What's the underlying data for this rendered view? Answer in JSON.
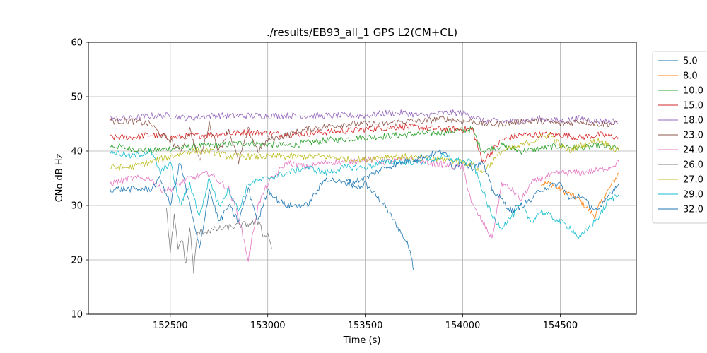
{
  "chart_data": {
    "type": "line",
    "title": "./results/EB93_all_1 GPS L2(CM+CL)",
    "xlabel": "Time (s)",
    "ylabel": "CNo dB Hz",
    "xlim": [
      152080,
      154890
    ],
    "ylim": [
      10,
      60
    ],
    "x_ticks": [
      152500,
      153000,
      153500,
      154000,
      154500
    ],
    "y_ticks": [
      10,
      20,
      30,
      40,
      50,
      60
    ],
    "grid": true,
    "legend_position": "right-outside",
    "series": [
      {
        "name": "5.0",
        "color": "#1f77b4",
        "points": [
          [
            153400,
            35
          ],
          [
            153450,
            33
          ],
          [
            153500,
            34
          ],
          [
            153550,
            32
          ],
          [
            153600,
            30
          ],
          [
            153650,
            27
          ],
          [
            153700,
            24
          ],
          [
            153730,
            22
          ],
          [
            153750,
            18
          ]
        ]
      },
      {
        "name": "8.0",
        "color": "#ff7f0e",
        "points": [
          [
            154400,
            34
          ],
          [
            154450,
            34
          ],
          [
            154500,
            33
          ],
          [
            154550,
            32
          ],
          [
            154600,
            31
          ],
          [
            154650,
            29
          ],
          [
            154680,
            28
          ],
          [
            154700,
            30
          ],
          [
            154750,
            33
          ],
          [
            154800,
            36
          ]
        ]
      },
      {
        "name": "10.0",
        "color": "#2ca02c",
        "points": [
          [
            152190,
            41
          ],
          [
            152300,
            40.5
          ],
          [
            152400,
            40
          ],
          [
            152500,
            40.5
          ],
          [
            152700,
            41
          ],
          [
            152900,
            41.5
          ],
          [
            153100,
            41
          ],
          [
            153300,
            42
          ],
          [
            153500,
            42.5
          ],
          [
            153700,
            43
          ],
          [
            153900,
            43.5
          ],
          [
            154050,
            44
          ],
          [
            154100,
            40
          ],
          [
            154200,
            41
          ],
          [
            154300,
            40
          ],
          [
            154400,
            40.5
          ],
          [
            154500,
            41
          ],
          [
            154600,
            40.5
          ],
          [
            154700,
            41
          ],
          [
            154800,
            40.5
          ]
        ]
      },
      {
        "name": "15.0",
        "color": "#d62728",
        "points": [
          [
            152190,
            42.5
          ],
          [
            152300,
            42.5
          ],
          [
            152400,
            43
          ],
          [
            152500,
            42.5
          ],
          [
            152700,
            43
          ],
          [
            152900,
            43.5
          ],
          [
            153100,
            43
          ],
          [
            153300,
            43.5
          ],
          [
            153500,
            44
          ],
          [
            153700,
            44.5
          ],
          [
            153900,
            44
          ],
          [
            154050,
            44
          ],
          [
            154100,
            38
          ],
          [
            154150,
            40
          ],
          [
            154200,
            42
          ],
          [
            154300,
            43
          ],
          [
            154400,
            43
          ],
          [
            154500,
            43
          ],
          [
            154600,
            42.5
          ],
          [
            154700,
            43
          ],
          [
            154800,
            42.5
          ]
        ]
      },
      {
        "name": "18.0",
        "color": "#9467bd",
        "points": [
          [
            152190,
            46
          ],
          [
            152300,
            46
          ],
          [
            152400,
            46.5
          ],
          [
            152500,
            46.5
          ],
          [
            152600,
            46
          ],
          [
            152700,
            46.5
          ],
          [
            152800,
            46.5
          ],
          [
            152900,
            46.5
          ],
          [
            153000,
            46.5
          ],
          [
            153100,
            46.5
          ],
          [
            153200,
            46.5
          ],
          [
            153300,
            46.5
          ],
          [
            153400,
            46.5
          ],
          [
            153500,
            46.5
          ],
          [
            153600,
            47
          ],
          [
            153700,
            47
          ],
          [
            153800,
            46.5
          ],
          [
            153900,
            47
          ],
          [
            154000,
            47
          ],
          [
            154050,
            46.5
          ],
          [
            154100,
            45.5
          ],
          [
            154200,
            45.5
          ],
          [
            154300,
            45.5
          ],
          [
            154400,
            46
          ],
          [
            154500,
            45.5
          ],
          [
            154600,
            46
          ],
          [
            154700,
            45.5
          ],
          [
            154800,
            45.5
          ]
        ]
      },
      {
        "name": "23.0",
        "color": "#8c564b",
        "points": [
          [
            152190,
            45.5
          ],
          [
            152300,
            45.5
          ],
          [
            152400,
            45
          ],
          [
            152450,
            43
          ],
          [
            152500,
            42
          ],
          [
            152550,
            40
          ],
          [
            152600,
            44
          ],
          [
            152650,
            38
          ],
          [
            152700,
            45
          ],
          [
            152750,
            40
          ],
          [
            152800,
            44
          ],
          [
            152850,
            38
          ],
          [
            152900,
            44
          ],
          [
            152950,
            40
          ],
          [
            153000,
            42
          ],
          [
            153100,
            43
          ],
          [
            153200,
            44
          ],
          [
            153300,
            44.5
          ],
          [
            153400,
            45
          ],
          [
            153500,
            45
          ],
          [
            153600,
            45
          ],
          [
            153700,
            45.5
          ],
          [
            153800,
            45.5
          ],
          [
            153900,
            46
          ],
          [
            154000,
            45.5
          ],
          [
            154050,
            45.5
          ],
          [
            154100,
            45
          ],
          [
            154200,
            45
          ],
          [
            154300,
            45.5
          ],
          [
            154400,
            45.5
          ],
          [
            154500,
            45
          ],
          [
            154600,
            45.5
          ],
          [
            154700,
            45
          ],
          [
            154800,
            45
          ]
        ]
      },
      {
        "name": "24.0",
        "color": "#e377c2",
        "points": [
          [
            152190,
            34
          ],
          [
            152300,
            35
          ],
          [
            152400,
            35
          ],
          [
            152450,
            33
          ],
          [
            152500,
            33
          ],
          [
            152600,
            35
          ],
          [
            152700,
            36
          ],
          [
            152800,
            33
          ],
          [
            152850,
            28
          ],
          [
            152900,
            20
          ],
          [
            152950,
            30
          ],
          [
            153000,
            34
          ],
          [
            153100,
            38
          ],
          [
            153200,
            37
          ],
          [
            153300,
            38
          ],
          [
            153400,
            38
          ],
          [
            153500,
            38.5
          ],
          [
            153600,
            38
          ],
          [
            153700,
            38.5
          ],
          [
            153800,
            38
          ],
          [
            153900,
            37.5
          ],
          [
            154000,
            37
          ],
          [
            154050,
            30
          ],
          [
            154100,
            27
          ],
          [
            154150,
            24
          ],
          [
            154200,
            34
          ],
          [
            154250,
            33
          ],
          [
            154300,
            31
          ],
          [
            154350,
            34
          ],
          [
            154400,
            35
          ],
          [
            154500,
            36
          ],
          [
            154600,
            36
          ],
          [
            154700,
            36.5
          ],
          [
            154750,
            37
          ],
          [
            154800,
            38
          ]
        ]
      },
      {
        "name": "26.0",
        "color": "#7f7f7f",
        "points": [
          [
            152480,
            30
          ],
          [
            152500,
            21
          ],
          [
            152520,
            28
          ],
          [
            152540,
            22
          ],
          [
            152560,
            24
          ],
          [
            152580,
            19
          ],
          [
            152600,
            26
          ],
          [
            152620,
            18
          ],
          [
            152640,
            25
          ],
          [
            152960,
            27
          ],
          [
            152980,
            24
          ],
          [
            153000,
            25
          ],
          [
            153020,
            22
          ]
        ]
      },
      {
        "name": "27.0",
        "color": "#bcbd22",
        "points": [
          [
            152190,
            37
          ],
          [
            152300,
            37
          ],
          [
            152400,
            38
          ],
          [
            152500,
            39
          ],
          [
            152600,
            40
          ],
          [
            152700,
            40
          ],
          [
            152800,
            39
          ],
          [
            152900,
            39
          ],
          [
            153000,
            39
          ],
          [
            153100,
            39
          ],
          [
            153200,
            39
          ],
          [
            153300,
            39
          ],
          [
            153400,
            38.5
          ],
          [
            153500,
            38.5
          ],
          [
            153600,
            39
          ],
          [
            153700,
            39
          ],
          [
            153800,
            38.5
          ],
          [
            153900,
            38.5
          ],
          [
            154000,
            38
          ],
          [
            154050,
            37.5
          ],
          [
            154100,
            36
          ],
          [
            154150,
            38
          ],
          [
            154200,
            40
          ],
          [
            154300,
            41
          ],
          [
            154400,
            42.5
          ],
          [
            154450,
            43
          ],
          [
            154500,
            41
          ],
          [
            154550,
            40
          ],
          [
            154600,
            41
          ],
          [
            154700,
            42
          ],
          [
            154800,
            40
          ]
        ]
      },
      {
        "name": "29.0",
        "color": "#17becf",
        "points": [
          [
            152190,
            40
          ],
          [
            152300,
            39
          ],
          [
            152400,
            40
          ],
          [
            152450,
            36
          ],
          [
            152500,
            38
          ],
          [
            152550,
            30
          ],
          [
            152600,
            34
          ],
          [
            152650,
            28
          ],
          [
            152700,
            35
          ],
          [
            152750,
            30
          ],
          [
            152800,
            33
          ],
          [
            152850,
            29
          ],
          [
            152900,
            34
          ],
          [
            153000,
            35
          ],
          [
            153100,
            36
          ],
          [
            153200,
            37
          ],
          [
            153300,
            36
          ],
          [
            153400,
            37
          ],
          [
            153500,
            37
          ],
          [
            153600,
            38
          ],
          [
            153700,
            38
          ],
          [
            153800,
            38
          ],
          [
            153900,
            39
          ],
          [
            154000,
            38
          ],
          [
            154050,
            38
          ],
          [
            154100,
            33
          ],
          [
            154150,
            28
          ],
          [
            154200,
            26
          ],
          [
            154250,
            28
          ],
          [
            154300,
            30
          ],
          [
            154350,
            27
          ],
          [
            154400,
            29
          ],
          [
            154500,
            27
          ],
          [
            154550,
            26
          ],
          [
            154600,
            24
          ],
          [
            154650,
            26
          ],
          [
            154700,
            28
          ],
          [
            154750,
            31
          ],
          [
            154800,
            32
          ]
        ]
      },
      {
        "name": "32.0",
        "color": "#1f77b4",
        "points": [
          [
            152190,
            33
          ],
          [
            152300,
            33
          ],
          [
            152400,
            33
          ],
          [
            152450,
            35
          ],
          [
            152500,
            30
          ],
          [
            152550,
            38
          ],
          [
            152600,
            30
          ],
          [
            152650,
            22
          ],
          [
            152700,
            33
          ],
          [
            152750,
            27
          ],
          [
            152800,
            30
          ],
          [
            152850,
            27
          ],
          [
            152900,
            33
          ],
          [
            152950,
            27
          ],
          [
            153000,
            33
          ],
          [
            153050,
            31
          ],
          [
            153100,
            30
          ],
          [
            153200,
            30
          ],
          [
            153300,
            35
          ],
          [
            153400,
            34
          ],
          [
            153500,
            35
          ],
          [
            153600,
            37
          ],
          [
            153700,
            38
          ],
          [
            153800,
            39
          ],
          [
            153900,
            40
          ],
          [
            153950,
            37
          ],
          [
            154000,
            38
          ],
          [
            154050,
            37
          ],
          [
            154100,
            38
          ],
          [
            154150,
            33
          ],
          [
            154200,
            31
          ],
          [
            154250,
            29
          ],
          [
            154300,
            30
          ],
          [
            154350,
            31
          ],
          [
            154400,
            33
          ],
          [
            154500,
            34
          ],
          [
            154550,
            31
          ],
          [
            154600,
            32
          ],
          [
            154650,
            30
          ],
          [
            154700,
            29
          ],
          [
            154750,
            32
          ],
          [
            154800,
            34
          ]
        ]
      }
    ]
  }
}
